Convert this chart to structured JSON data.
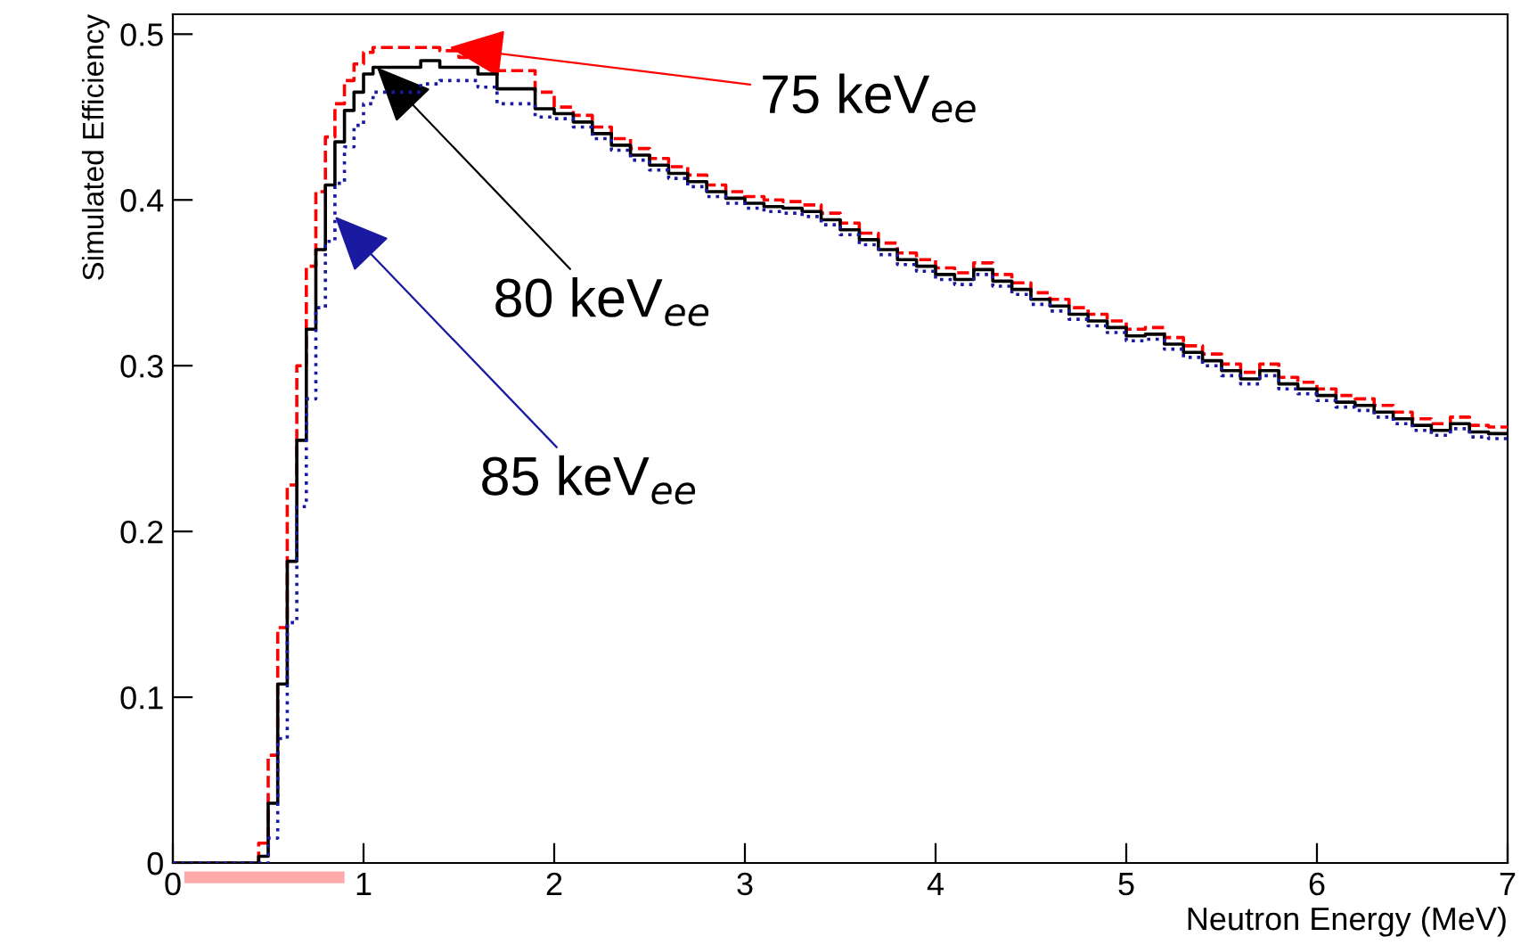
{
  "chart_data": {
    "type": "step",
    "xlabel": "Neutron Energy (MeV)",
    "ylabel": "Simulated Efficiency",
    "xlim": [
      0,
      7
    ],
    "ylim": [
      0,
      0.512
    ],
    "xticks": [
      0,
      1,
      2,
      3,
      4,
      5,
      6,
      7
    ],
    "yticks": [
      0,
      0.1,
      0.2,
      0.3,
      0.4,
      0.5
    ],
    "grid": false,
    "x": [
      0,
      0.45,
      0.5,
      0.55,
      0.6,
      0.65,
      0.7,
      0.75,
      0.8,
      0.85,
      0.9,
      0.95,
      1.0,
      1.05,
      1.3,
      1.4,
      1.5,
      1.6,
      1.7,
      1.9,
      2.0,
      2.1,
      2.2,
      2.3,
      2.4,
      2.5,
      2.6,
      2.7,
      2.8,
      2.9,
      3.0,
      3.1,
      3.2,
      3.3,
      3.4,
      3.5,
      3.6,
      3.7,
      3.8,
      3.9,
      4.0,
      4.1,
      4.2,
      4.3,
      4.4,
      4.5,
      4.6,
      4.7,
      4.8,
      4.9,
      5.0,
      5.1,
      5.2,
      5.3,
      5.4,
      5.5,
      5.6,
      5.7,
      5.8,
      5.9,
      6.0,
      6.1,
      6.2,
      6.3,
      6.4,
      6.5,
      6.6,
      6.7,
      6.8,
      6.9,
      7.0
    ],
    "series": [
      {
        "color": "#ff0000",
        "line_style": "dashed",
        "values": [
          0,
          0.012,
          0.065,
          0.142,
          0.228,
          0.3,
          0.36,
          0.405,
          0.438,
          0.458,
          0.472,
          0.482,
          0.489,
          0.492,
          0.492,
          0.49,
          0.486,
          0.486,
          0.478,
          0.465,
          0.456,
          0.451,
          0.444,
          0.437,
          0.431,
          0.425,
          0.42,
          0.415,
          0.409,
          0.405,
          0.402,
          0.4,
          0.399,
          0.397,
          0.392,
          0.386,
          0.38,
          0.374,
          0.368,
          0.364,
          0.359,
          0.356,
          0.362,
          0.355,
          0.35,
          0.344,
          0.34,
          0.335,
          0.331,
          0.327,
          0.322,
          0.323,
          0.317,
          0.312,
          0.307,
          0.301,
          0.296,
          0.301,
          0.293,
          0.29,
          0.286,
          0.282,
          0.28,
          0.276,
          0.272,
          0.268,
          0.265,
          0.269,
          0.264,
          0.263,
          0.263
        ]
      },
      {
        "color": "#000000",
        "line_style": "solid",
        "values": [
          0,
          0.004,
          0.036,
          0.108,
          0.182,
          0.255,
          0.322,
          0.37,
          0.409,
          0.435,
          0.454,
          0.465,
          0.476,
          0.48,
          0.484,
          0.48,
          0.48,
          0.476,
          0.467,
          0.455,
          0.452,
          0.447,
          0.44,
          0.433,
          0.427,
          0.421,
          0.416,
          0.411,
          0.405,
          0.401,
          0.398,
          0.396,
          0.395,
          0.393,
          0.388,
          0.382,
          0.376,
          0.37,
          0.364,
          0.36,
          0.355,
          0.352,
          0.358,
          0.351,
          0.346,
          0.34,
          0.336,
          0.331,
          0.327,
          0.323,
          0.318,
          0.319,
          0.313,
          0.308,
          0.303,
          0.297,
          0.292,
          0.297,
          0.289,
          0.286,
          0.282,
          0.278,
          0.276,
          0.272,
          0.268,
          0.264,
          0.261,
          0.265,
          0.26,
          0.259,
          0.259
        ]
      },
      {
        "color": "#1a1aa0",
        "line_style": "dotted",
        "values": [
          0,
          0,
          0.015,
          0.075,
          0.145,
          0.215,
          0.28,
          0.335,
          0.375,
          0.41,
          0.432,
          0.445,
          0.458,
          0.465,
          0.47,
          0.472,
          0.472,
          0.468,
          0.458,
          0.45,
          0.449,
          0.444,
          0.437,
          0.43,
          0.424,
          0.418,
          0.413,
          0.408,
          0.402,
          0.398,
          0.395,
          0.393,
          0.392,
          0.39,
          0.385,
          0.379,
          0.373,
          0.367,
          0.361,
          0.357,
          0.352,
          0.349,
          0.355,
          0.348,
          0.343,
          0.337,
          0.333,
          0.328,
          0.324,
          0.32,
          0.315,
          0.316,
          0.31,
          0.305,
          0.3,
          0.294,
          0.289,
          0.294,
          0.286,
          0.283,
          0.279,
          0.275,
          0.273,
          0.269,
          0.265,
          0.261,
          0.258,
          0.262,
          0.257,
          0.256,
          0.256
        ]
      }
    ],
    "annotations": [
      {
        "text": "75 keV$_{ee}$",
        "x": 1.45,
        "y": 0.492
      },
      {
        "text": "80 keV$_{ee}$",
        "x": 1.07,
        "y": 0.48
      },
      {
        "text": "85 keV$_{ee}$",
        "x": 0.85,
        "y": 0.39
      }
    ]
  }
}
